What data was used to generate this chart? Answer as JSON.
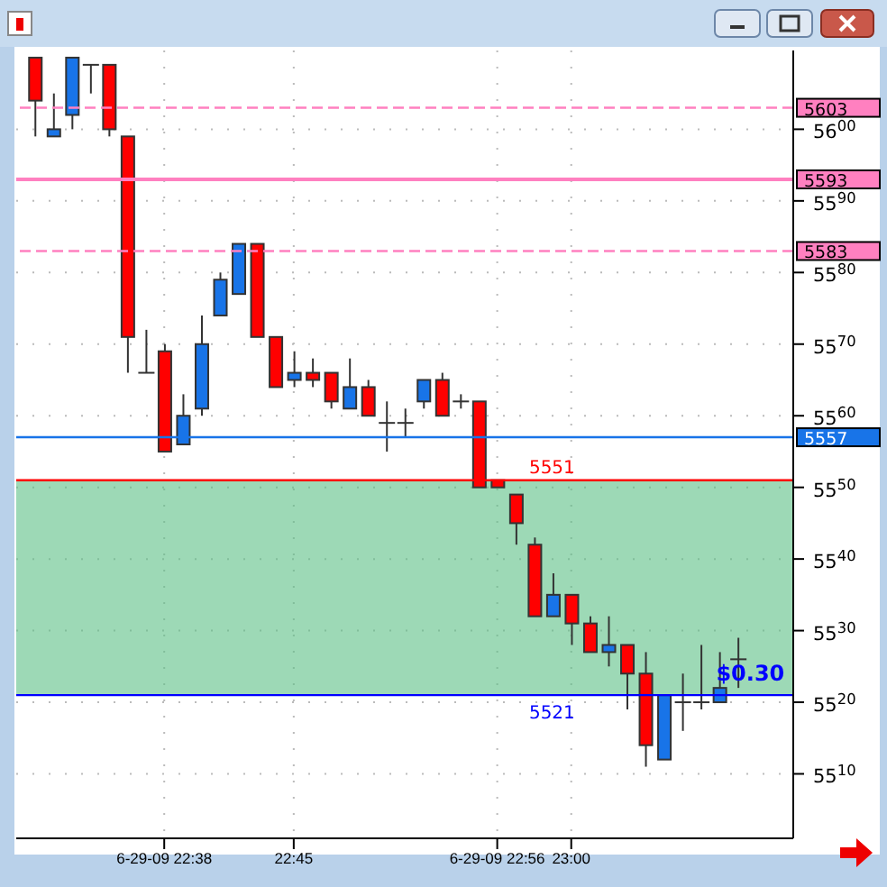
{
  "chart_data": {
    "type": "candlestick",
    "x": [
      "--06-29T22:31",
      "--06-29T22:32",
      "--06-29T22:33",
      "--06-29T22:34",
      "--06-29T22:35",
      "--06-29T22:36",
      "--06-29T22:37",
      "--06-29T22:38",
      "--06-29T22:39",
      "--06-29T22:40",
      "--06-29T22:41",
      "--06-29T22:42",
      "--06-29T22:43",
      "--06-29T22:44",
      "--06-29T22:45",
      "--06-29T22:46",
      "--06-29T22:47",
      "--06-29T22:48",
      "--06-29T22:49",
      "--06-29T22:50",
      "--06-29T22:51",
      "--06-29T22:52",
      "--06-29T22:53",
      "--06-29T22:54",
      "--06-29T22:55",
      "--06-29T22:56",
      "--06-29T22:57",
      "--06-29T22:58",
      "--06-29T22:59",
      "--06-29T23:00",
      "--06-29T23:01",
      "--06-29T23:02",
      "--06-29T23:03",
      "--06-29T23:04",
      "--06-29T23:05",
      "--06-29T23:06",
      "--06-29T23:07",
      "--06-29T23:08",
      "--06-29T23:09"
    ],
    "ohlc": [
      [
        5610,
        5610,
        5599,
        5604
      ],
      [
        5599,
        5605,
        5599,
        5600
      ],
      [
        5602,
        5610,
        5600,
        5610
      ],
      [
        5609,
        5609,
        5605,
        5609
      ],
      [
        5609,
        5609,
        5599,
        5600
      ],
      [
        5599,
        5599,
        5566,
        5571
      ],
      [
        5566,
        5572,
        5566,
        5566
      ],
      [
        5569,
        5570,
        5555,
        5555
      ],
      [
        5556,
        5563,
        5556,
        5560
      ],
      [
        5561,
        5574,
        5560,
        5570
      ],
      [
        5574,
        5580,
        5574,
        5579
      ],
      [
        5577,
        5584,
        5577,
        5584
      ],
      [
        5584,
        5584,
        5571,
        5571
      ],
      [
        5571,
        5571,
        5564,
        5564
      ],
      [
        5565,
        5569,
        5564,
        5566
      ],
      [
        5566,
        5568,
        5564,
        5565
      ],
      [
        5566,
        5566,
        5561,
        5562
      ],
      [
        5561,
        5568,
        5561,
        5564
      ],
      [
        5564,
        5565,
        5560,
        5560
      ],
      [
        5559,
        5562,
        5555,
        5559
      ],
      [
        5559,
        5561,
        5557,
        5559
      ],
      [
        5562,
        5565,
        5561,
        5565
      ],
      [
        5565,
        5566,
        5560,
        5560
      ],
      [
        5562,
        5563,
        5561,
        5562
      ],
      [
        5562,
        5562,
        5550,
        5550
      ],
      [
        5551,
        5551,
        5550,
        5550
      ],
      [
        5549,
        5549,
        5542,
        5545
      ],
      [
        5542,
        5543,
        5532,
        5532
      ],
      [
        5532,
        5538,
        5532,
        5535
      ],
      [
        5535,
        5535,
        5528,
        5531
      ],
      [
        5531,
        5532,
        5527,
        5527
      ],
      [
        5527,
        5532,
        5525,
        5528
      ],
      [
        5528,
        5528,
        5519,
        5524
      ],
      [
        5524,
        5527,
        5511,
        5514
      ],
      [
        5512,
        5521,
        5512,
        5521
      ],
      [
        5520,
        5524,
        5516,
        5520
      ],
      [
        5520,
        5528,
        5519,
        5520
      ],
      [
        5520,
        5527,
        5520,
        5522
      ],
      [
        5526,
        5529,
        5522,
        5526
      ]
    ],
    "colors": [
      "#ff0000",
      "#1874e8",
      "#1874e8",
      "#333333",
      "#ff0000",
      "#ff0000",
      "#333333",
      "#ff0000",
      "#1874e8",
      "#1874e8",
      "#1874e8",
      "#1874e8",
      "#ff0000",
      "#ff0000",
      "#1874e8",
      "#ff0000",
      "#ff0000",
      "#1874e8",
      "#ff0000",
      "#333333",
      "#333333",
      "#1874e8",
      "#ff0000",
      "#333333",
      "#ff0000",
      "#ff0000",
      "#ff0000",
      "#ff0000",
      "#1874e8",
      "#ff0000",
      "#ff0000",
      "#1874e8",
      "#ff0000",
      "#ff0000",
      "#1874e8",
      "#333333",
      "#333333",
      "#1874e8",
      "#333333"
    ],
    "xlim": [
      "--06-29T22:30",
      "--06-29T23:12"
    ],
    "xticks": [
      {
        "value": "--06-29T22:38",
        "label": "6-29-09 22:38"
      },
      {
        "value": "--06-29T22:45",
        "label": "22:45"
      },
      {
        "value": "--06-29T22:56",
        "label": "6-29-09 22:56"
      },
      {
        "value": "--06-29T23:00",
        "label": "23:00"
      }
    ],
    "ylim": [
      5501,
      5611
    ],
    "yticks": [
      5510,
      5520,
      5530,
      5540,
      5550,
      5560,
      5570,
      5580,
      5590,
      5600
    ],
    "grid": true,
    "ref_lines": [
      {
        "axis": "y",
        "value": 5603,
        "label": "5603",
        "color": "#ff80c0",
        "line_style": "dashed"
      },
      {
        "axis": "y",
        "value": 5593,
        "label": "5593",
        "color": "#ff80c0",
        "line_style": "solid"
      },
      {
        "axis": "y",
        "value": 5583,
        "label": "5583",
        "color": "#ff80c0",
        "line_style": "dashed"
      },
      {
        "axis": "y",
        "value": 5557,
        "label": "5557",
        "color": "#1874e8",
        "line_style": "solid"
      },
      {
        "axis": "y",
        "value": 5551,
        "label": "5551",
        "color": "#ff0000",
        "line_style": "solid"
      },
      {
        "axis": "y",
        "value": 5521,
        "label": "5521",
        "color": "#0000ff",
        "line_style": "solid"
      }
    ],
    "bands": [
      {
        "axis": "y",
        "from": 5521,
        "to": 5551,
        "color": "#5cbf85"
      }
    ],
    "annotations": [
      {
        "text": "$0.30",
        "x": "--06-29T23:09",
        "y": 5522
      }
    ]
  }
}
